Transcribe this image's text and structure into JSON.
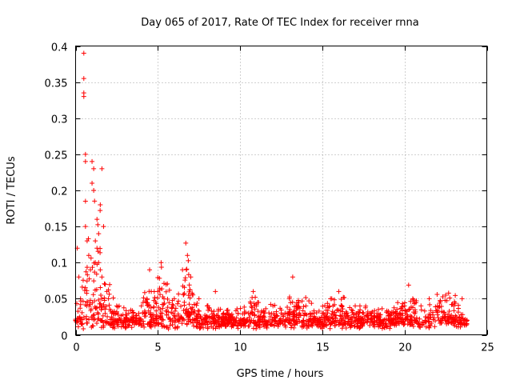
{
  "chart_data": {
    "type": "scatter",
    "title": "Day 065 of 2017, Rate Of TEC Index for receiver rnna",
    "xlabel": "GPS time / hours",
    "ylabel": "ROTI / TECUs",
    "xlim": [
      0,
      25
    ],
    "ylim": [
      0,
      0.4
    ],
    "xticks": [
      0,
      5,
      10,
      15,
      20,
      25
    ],
    "xtick_labels": [
      "0",
      "5",
      "10",
      "15",
      "20",
      "25"
    ],
    "yticks": [
      0,
      0.05,
      0.1,
      0.15,
      0.2,
      0.25,
      0.3,
      0.35,
      0.4
    ],
    "ytick_labels": [
      "0",
      "0.05",
      "0.1",
      "0.15",
      "0.2",
      "0.25",
      "0.3",
      "0.35",
      "0.4"
    ],
    "grid": true,
    "marker": "+",
    "color": "#ff0000",
    "x_range": [
      0.0,
      23.8
    ],
    "series": [
      {
        "name": "ROTI",
        "x": [
          0.0,
          0.1,
          0.2,
          0.3,
          0.5,
          0.5,
          0.5,
          0.5,
          0.6,
          0.6,
          0.6,
          0.6,
          0.7,
          0.8,
          0.9,
          1.0,
          1.0,
          1.1,
          1.1,
          1.2,
          1.2,
          1.3,
          1.3,
          1.4,
          1.4,
          1.5,
          1.5,
          1.6,
          1.6,
          1.7,
          1.8,
          1.9,
          2.0,
          2.2,
          2.5,
          3.0,
          3.5,
          4.0,
          4.5,
          4.6,
          5.0,
          5.2,
          5.5,
          6.0,
          6.5,
          6.7,
          6.8,
          7.0,
          7.5,
          8.0,
          8.5,
          9.0,
          9.5,
          10.0,
          10.5,
          10.8,
          11.0,
          11.5,
          12.0,
          12.5,
          13.0,
          13.2,
          13.5,
          14.0,
          14.5,
          15.0,
          15.5,
          16.0,
          16.2,
          16.5,
          17.0,
          17.5,
          18.0,
          18.5,
          19.0,
          19.5,
          20.0,
          20.5,
          21.0,
          21.5,
          22.0,
          22.5,
          23.0,
          23.5,
          23.8
        ],
        "y": [
          0.02,
          0.12,
          0.08,
          0.05,
          0.39,
          0.355,
          0.335,
          0.33,
          0.25,
          0.24,
          0.185,
          0.15,
          0.13,
          0.11,
          0.09,
          0.24,
          0.21,
          0.23,
          0.2,
          0.13,
          0.1,
          0.16,
          0.12,
          0.14,
          0.1,
          0.18,
          0.09,
          0.23,
          0.08,
          0.15,
          0.07,
          0.06,
          0.05,
          0.03,
          0.03,
          0.02,
          0.03,
          0.04,
          0.09,
          0.06,
          0.06,
          0.1,
          0.07,
          0.05,
          0.09,
          0.127,
          0.11,
          0.08,
          0.05,
          0.04,
          0.06,
          0.03,
          0.02,
          0.02,
          0.03,
          0.06,
          0.04,
          0.03,
          0.04,
          0.03,
          0.05,
          0.08,
          0.04,
          0.04,
          0.03,
          0.03,
          0.05,
          0.06,
          0.04,
          0.03,
          0.04,
          0.03,
          0.03,
          0.02,
          0.03,
          0.03,
          0.04,
          0.05,
          0.04,
          0.05,
          0.04,
          0.055,
          0.04,
          0.05,
          0.02
        ]
      }
    ]
  }
}
